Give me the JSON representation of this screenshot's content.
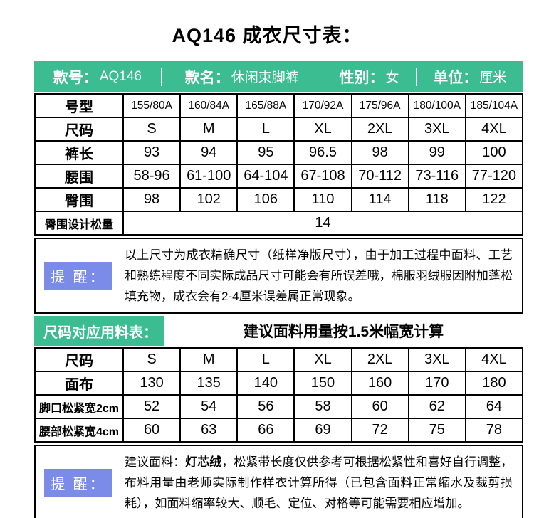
{
  "page": {
    "title": "AQ146 成衣尺寸表："
  },
  "colors": {
    "green": "#3BBC91",
    "blue": "#7A8BE8",
    "border": "#000000"
  },
  "header": {
    "items": [
      {
        "label": "款号：",
        "value": "AQ146"
      },
      {
        "label": "款名：",
        "value": "休闲束脚裤"
      },
      {
        "label": "性别：",
        "value": "女"
      },
      {
        "label": "单位：",
        "value": "厘米"
      }
    ]
  },
  "size_table": {
    "rows": [
      {
        "label": "号型",
        "size": "small",
        "values": [
          "155/80A",
          "160/84A",
          "165/88A",
          "170/92A",
          "175/96A",
          "180/100A",
          "185/104A"
        ]
      },
      {
        "label": "尺码",
        "values": [
          "S",
          "M",
          "L",
          "XL",
          "2XL",
          "3XL",
          "4XL"
        ]
      },
      {
        "label": "裤长",
        "values": [
          "93",
          "94",
          "95",
          "96.5",
          "98",
          "99",
          "100"
        ]
      },
      {
        "label": "腰围",
        "values": [
          "58-96",
          "61-100",
          "64-104",
          "67-108",
          "70-112",
          "73-116",
          "77-120"
        ]
      },
      {
        "label": "臀围",
        "values": [
          "98",
          "102",
          "106",
          "110",
          "114",
          "118",
          "122"
        ]
      },
      {
        "label": "臀围设计松量",
        "label_small": true,
        "span_value": "14"
      }
    ]
  },
  "reminder1": {
    "label": "提 醒：",
    "text": "以上尺寸为成衣精确尺寸（纸样净版尺寸），由于加工过程中面料、工艺和熟练程度不同实际成品尺寸可能会有所误差哦，棉服羽绒服因附加蓬松填充物，成衣会有2-4厘米误差属正常现象。"
  },
  "fabric_section": {
    "heading": "尺码对应用料表：",
    "subtitle": "建议面料用量按1.5米幅宽计算"
  },
  "fabric_table": {
    "rows": [
      {
        "label": "尺码",
        "values": [
          "S",
          "M",
          "L",
          "XL",
          "2XL",
          "3XL",
          "4XL"
        ]
      },
      {
        "label": "面布",
        "values": [
          "130",
          "135",
          "140",
          "150",
          "160",
          "170",
          "180"
        ]
      },
      {
        "label": "脚口松紧宽2cm",
        "label_small": true,
        "values": [
          "52",
          "54",
          "56",
          "58",
          "60",
          "62",
          "64"
        ]
      },
      {
        "label": "腰部松紧宽4cm",
        "label_small": true,
        "values": [
          "60",
          "63",
          "66",
          "69",
          "72",
          "75",
          "78"
        ]
      }
    ]
  },
  "reminder2": {
    "label": "提 醒：",
    "text_prefix": "建议面料：",
    "text_bold": "灯芯绒",
    "text_rest": "，松紧带长度仅供参考可根据松紧性和喜好自行调整，布料用量由老师实际制作样衣计算所得（已包含面料正常缩水及裁剪损耗），如面料缩率较大、顺毛、定位、对格等可能需要相应增加。"
  }
}
